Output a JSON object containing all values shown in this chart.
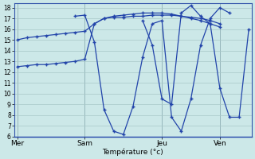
{
  "background_color": "#cce8e8",
  "line_color": "#2244aa",
  "xlabel": "Température (°c)",
  "ylim": [
    6,
    18.4
  ],
  "xlim": [
    -0.3,
    24.3
  ],
  "day_labels": [
    "Mer",
    "Sam",
    "Jeu",
    "Ven"
  ],
  "day_positions": [
    0,
    7,
    15,
    21
  ],
  "series": [
    {
      "x": [
        0,
        1,
        2,
        3,
        4,
        5,
        6,
        7,
        8,
        9,
        10,
        11,
        12,
        13,
        14,
        15,
        16,
        17,
        18,
        19,
        20,
        21
      ],
      "y": [
        12.5,
        12.6,
        12.7,
        12.7,
        12.8,
        12.9,
        13.0,
        13.2,
        16.5,
        17.0,
        17.2,
        17.3,
        17.4,
        17.5,
        17.5,
        17.5,
        17.4,
        17.2,
        17.0,
        16.8,
        16.5,
        16.2
      ]
    },
    {
      "x": [
        0,
        1,
        2,
        3,
        4,
        5,
        6,
        7,
        8,
        9,
        10,
        11,
        12,
        13,
        14,
        15,
        16,
        17,
        18,
        19,
        20,
        21
      ],
      "y": [
        15.0,
        15.2,
        15.3,
        15.4,
        15.5,
        15.6,
        15.7,
        15.8,
        16.5,
        17.0,
        17.1,
        17.1,
        17.2,
        17.2,
        17.3,
        17.3,
        17.3,
        17.2,
        17.1,
        17.0,
        16.8,
        16.5
      ]
    },
    {
      "x": [
        6,
        7,
        8,
        9,
        10,
        11,
        12,
        13,
        14,
        15,
        16,
        17,
        18,
        19,
        20,
        21,
        22
      ],
      "y": [
        17.2,
        17.3,
        14.8,
        8.5,
        6.5,
        6.2,
        8.8,
        13.4,
        16.5,
        16.8,
        7.8,
        6.5,
        9.5,
        14.5,
        17.0,
        18.0,
        17.5
      ]
    },
    {
      "x": [
        13,
        14,
        15,
        16,
        17,
        18,
        19,
        20,
        21,
        22,
        23,
        24
      ],
      "y": [
        16.8,
        14.5,
        9.5,
        9.0,
        17.5,
        18.2,
        17.2,
        16.5,
        10.5,
        7.8,
        7.8,
        16.0
      ]
    }
  ]
}
